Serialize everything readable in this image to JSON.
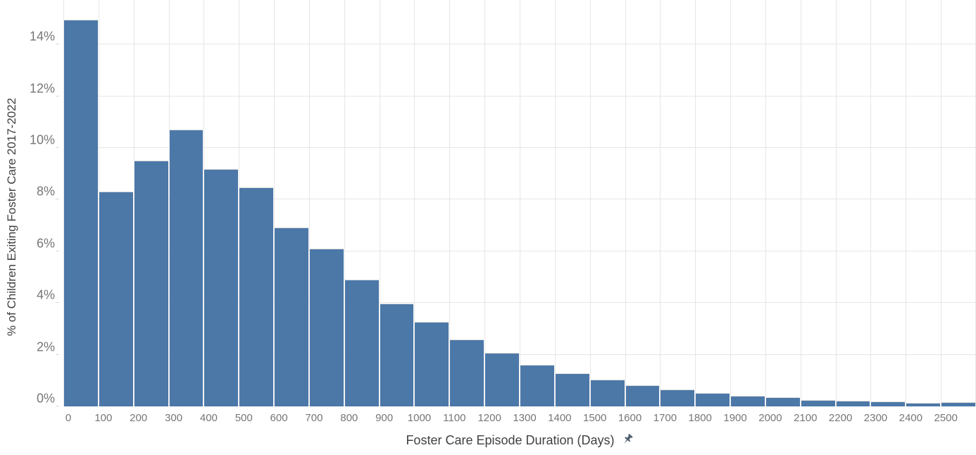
{
  "chart_data": {
    "type": "bar",
    "subtype": "histogram",
    "title": "",
    "xlabel": "Foster Care Episode Duration (Days)",
    "ylabel": "% of Children Exiting Foster Care 2017-2022",
    "bin_width_days": 100,
    "bin_starts": [
      0,
      100,
      200,
      300,
      400,
      500,
      600,
      700,
      800,
      900,
      1000,
      1100,
      1200,
      1300,
      1400,
      1500,
      1600,
      1700,
      1800,
      1900,
      2000,
      2100,
      2200,
      2300,
      2400,
      2500
    ],
    "values": [
      14.95,
      8.31,
      9.51,
      10.7,
      9.18,
      8.47,
      6.93,
      6.1,
      4.91,
      3.99,
      3.26,
      2.6,
      2.08,
      1.6,
      1.28,
      1.03,
      0.81,
      0.66,
      0.53,
      0.42,
      0.36,
      0.25,
      0.22,
      0.18,
      0.14,
      0.15
    ],
    "x_tick_labels": [
      "0",
      "100",
      "200",
      "300",
      "400",
      "500",
      "600",
      "700",
      "800",
      "900",
      "1000",
      "1100",
      "1200",
      "1300",
      "1400",
      "1500",
      "1600",
      "1700",
      "1800",
      "1900",
      "2000",
      "2100",
      "2200",
      "2300",
      "2400",
      "2500"
    ],
    "y_ticks": [
      0,
      2,
      4,
      6,
      8,
      10,
      12,
      14
    ],
    "y_tick_labels": [
      "0%",
      "2%",
      "4%",
      "6%",
      "8%",
      "10%",
      "12%",
      "14%"
    ],
    "ylim": [
      0,
      15.72
    ],
    "xlim_days": [
      0,
      2600
    ],
    "grid": true,
    "legend": "none"
  },
  "icons": {
    "axis_pin": "pushpin-icon"
  },
  "colors": {
    "bar": "#4c78a8",
    "grid": "#e6e6e6",
    "tick": "#767676",
    "title": "#414141",
    "pin": "#51606f",
    "bar-border": "#d9d9d9",
    "bg": "#ffffff"
  }
}
